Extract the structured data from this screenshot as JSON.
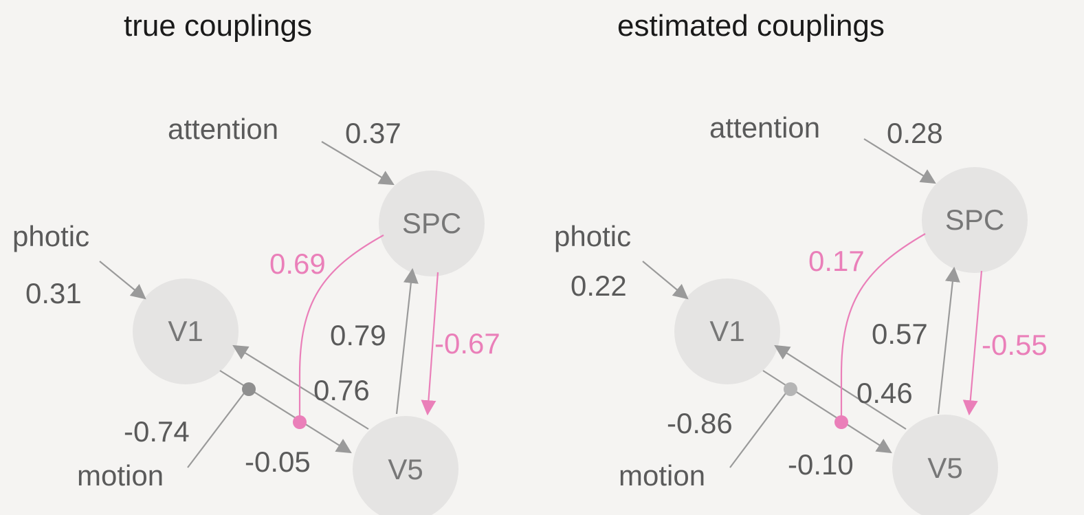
{
  "panels": [
    {
      "title": "true couplings",
      "nodes": {
        "v1": "V1",
        "v5": "V5",
        "spc": "SPC"
      },
      "inputs": {
        "photic": "photic",
        "attention": "attention",
        "motion": "motion"
      },
      "values": {
        "attention_spc": "0.37",
        "photic_v1": "0.31",
        "spc_v5_modulation": "0.69",
        "v5_spc": "0.79",
        "spc_v5": "-0.67",
        "v5_v1": "0.76",
        "motion_modulation": "-0.74",
        "v1_v5": "-0.05"
      }
    },
    {
      "title": "estimated couplings",
      "nodes": {
        "v1": "V1",
        "v5": "V5",
        "spc": "SPC"
      },
      "inputs": {
        "photic": "photic",
        "attention": "attention",
        "motion": "motion"
      },
      "values": {
        "attention_spc": "0.28",
        "photic_v1": "0.22",
        "spc_v5_modulation": "0.17",
        "v5_spc": "0.57",
        "spc_v5": "-0.55",
        "v5_v1": "0.46",
        "motion_modulation": "-0.86",
        "v1_v5": "-0.10"
      }
    }
  ],
  "colors": {
    "modulation_pink": "#ea7fb9",
    "edge_gray": "#9a9a9a",
    "node_fill": "#e5e4e3",
    "motion_dot_panel1": "#8f8f8f",
    "motion_dot_panel2": "#b5b5b5"
  }
}
